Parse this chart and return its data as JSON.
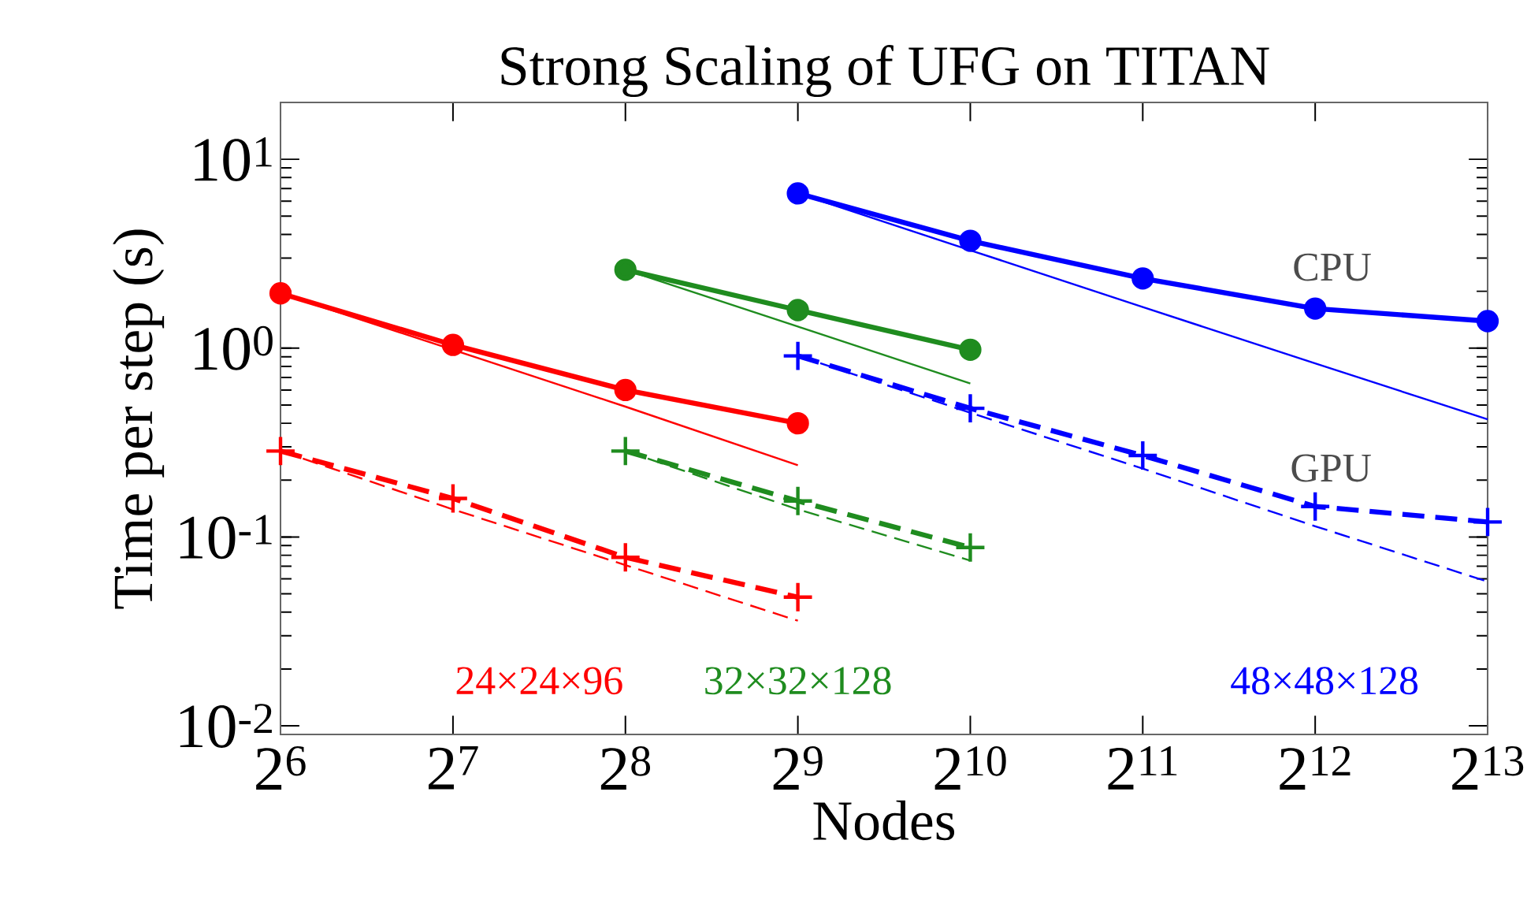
{
  "chart_data": {
    "type": "line",
    "title": "Strong Scaling of UFG on TITAN",
    "xlabel": "Nodes",
    "ylabel": "Time per step (s)",
    "log": "xy",
    "grid": false,
    "xlim": [
      64,
      8192
    ],
    "ylim": [
      0.009,
      20
    ],
    "xticks": [
      {
        "value": 64,
        "label": "2$^{6}$"
      },
      {
        "value": 128,
        "label": "2$^{7}$"
      },
      {
        "value": 256,
        "label": "2$^{8}$"
      },
      {
        "value": 512,
        "label": "2$^{9}$"
      },
      {
        "value": 1024,
        "label": "2$^{10}$"
      },
      {
        "value": 2048,
        "label": "2$^{11}$"
      },
      {
        "value": 4096,
        "label": "2$^{12}$"
      },
      {
        "value": 8192,
        "label": "2$^{13}$"
      }
    ],
    "yticks": [
      {
        "value": 0.01,
        "label": "10$^{-2}$"
      },
      {
        "value": 0.1,
        "label": "10$^{-1}$"
      },
      {
        "value": 1,
        "label": "10$^{0}$"
      },
      {
        "value": 10,
        "label": "10$^{1}$"
      }
    ],
    "series": [
      {
        "color": "#ff0000",
        "marker": "circle",
        "line_style": "solid",
        "x": [
          64,
          128,
          256,
          512
        ],
        "values": [
          1.95,
          1.04,
          0.6,
          0.4
        ]
      },
      {
        "color": "#ff0000",
        "marker": "none",
        "line_style": "solid",
        "x": [
          64,
          128,
          256,
          512
        ],
        "values": [
          1.95,
          0.98,
          0.49,
          0.24
        ]
      },
      {
        "color": "#ff0000",
        "marker": "cross",
        "line_style": "dashed",
        "x": [
          64,
          128,
          256,
          512
        ],
        "values": [
          0.285,
          0.16,
          0.078,
          0.048
        ]
      },
      {
        "color": "#ff0000",
        "marker": "none",
        "line_style": "dashed",
        "x": [
          64,
          128,
          256,
          512
        ],
        "values": [
          0.285,
          0.14,
          0.071,
          0.036
        ]
      },
      {
        "color": "#1f8c1f",
        "marker": "circle",
        "line_style": "solid",
        "x": [
          256,
          512,
          1024
        ],
        "values": [
          2.6,
          1.59,
          0.98
        ]
      },
      {
        "color": "#1f8c1f",
        "marker": "none",
        "line_style": "solid",
        "x": [
          256,
          512,
          1024
        ],
        "values": [
          2.6,
          1.3,
          0.65
        ]
      },
      {
        "color": "#1f8c1f",
        "marker": "cross",
        "line_style": "dashed",
        "x": [
          256,
          512,
          1024
        ],
        "values": [
          0.285,
          0.155,
          0.088
        ]
      },
      {
        "color": "#1f8c1f",
        "marker": "none",
        "line_style": "dashed",
        "x": [
          256,
          512,
          1024
        ],
        "values": [
          0.285,
          0.14,
          0.075
        ]
      },
      {
        "name": "CPU",
        "color": "#0000ff",
        "marker": "circle",
        "line_style": "solid",
        "x": [
          512,
          1024,
          2048,
          4096,
          8192
        ],
        "values": [
          6.6,
          3.7,
          2.34,
          1.62,
          1.39
        ]
      },
      {
        "color": "#0000ff",
        "marker": "none",
        "line_style": "solid",
        "x": [
          512,
          1024,
          2048,
          4096,
          8192
        ],
        "values": [
          6.6,
          3.3,
          1.65,
          0.83,
          0.42
        ]
      },
      {
        "name": "GPU",
        "color": "#0000ff",
        "marker": "cross",
        "line_style": "dashed",
        "x": [
          512,
          1024,
          2048,
          4096,
          8192
        ],
        "values": [
          0.91,
          0.48,
          0.27,
          0.145,
          0.12
        ]
      },
      {
        "color": "#0000ff",
        "marker": "none",
        "line_style": "dashed",
        "x": [
          512,
          1024,
          2048,
          4096,
          8192
        ],
        "values": [
          0.91,
          0.455,
          0.23,
          0.114,
          0.058
        ]
      }
    ],
    "annotations": [
      "24×24×96",
      "32×32×128",
      "48×48×128"
    ]
  }
}
